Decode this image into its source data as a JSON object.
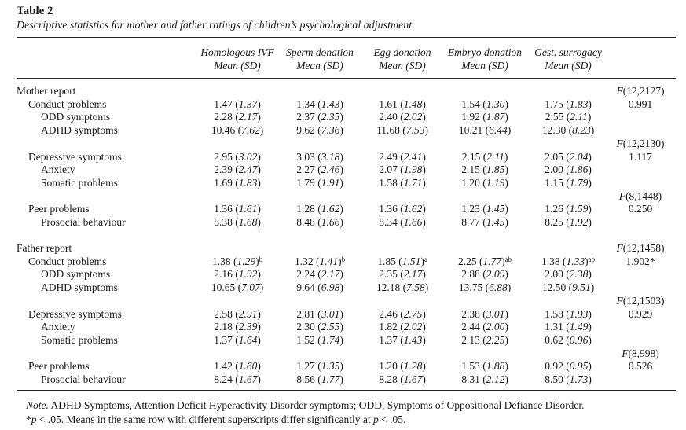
{
  "title": "Table 2",
  "caption": "Descriptive statistics for mother and father ratings of children’s psychological adjustment",
  "columns": [
    {
      "name": "Homologous IVF",
      "sub": "Mean (SD)"
    },
    {
      "name": "Sperm donation",
      "sub": "Mean (SD)"
    },
    {
      "name": "Egg donation",
      "sub": "Mean (SD)"
    },
    {
      "name": "Embryo donation",
      "sub": "Mean (SD)"
    },
    {
      "name": "Gest. surrogacy",
      "sub": "Mean (SD)"
    }
  ],
  "sections": [
    {
      "label": "Mother report",
      "groups": [
        {
          "f_label": "F(12,2127)",
          "f_value": "0.991",
          "rows": [
            {
              "label": "Conduct problems",
              "indent": 1,
              "cells": [
                [
                  "1.47",
                  "1.37",
                  ""
                ],
                [
                  "1.34",
                  "1.43",
                  ""
                ],
                [
                  "1.61",
                  "1.48",
                  ""
                ],
                [
                  "1.54",
                  "1.30",
                  ""
                ],
                [
                  "1.75",
                  "1.83",
                  ""
                ]
              ]
            },
            {
              "label": "ODD symptoms",
              "indent": 2,
              "cells": [
                [
                  "2.28",
                  "2.17",
                  ""
                ],
                [
                  "2.37",
                  "2.35",
                  ""
                ],
                [
                  "2.40",
                  "2.02",
                  ""
                ],
                [
                  "1.92",
                  "1.87",
                  ""
                ],
                [
                  "2.55",
                  "2.11",
                  ""
                ]
              ]
            },
            {
              "label": "ADHD symptoms",
              "indent": 2,
              "cells": [
                [
                  "10.46",
                  "7.62",
                  ""
                ],
                [
                  "9.62",
                  "7.36",
                  ""
                ],
                [
                  "11.68",
                  "7.53",
                  ""
                ],
                [
                  "10.21",
                  "6.44",
                  ""
                ],
                [
                  "12.30",
                  "8.23",
                  ""
                ]
              ]
            }
          ]
        },
        {
          "f_label": "F(12,2130)",
          "f_value": "1.117",
          "rows": [
            {
              "label": "Depressive symptoms",
              "indent": 1,
              "cells": [
                [
                  "2.95",
                  "3.02",
                  ""
                ],
                [
                  "3.03",
                  "3.18",
                  ""
                ],
                [
                  "2.49",
                  "2.41",
                  ""
                ],
                [
                  "2.15",
                  "2.11",
                  ""
                ],
                [
                  "2.05",
                  "2.04",
                  ""
                ]
              ]
            },
            {
              "label": "Anxiety",
              "indent": 2,
              "cells": [
                [
                  "2.39",
                  "2.47",
                  ""
                ],
                [
                  "2.27",
                  "2.46",
                  ""
                ],
                [
                  "2.07",
                  "1.98",
                  ""
                ],
                [
                  "2.15",
                  "1.85",
                  ""
                ],
                [
                  "2.00",
                  "1.86",
                  ""
                ]
              ]
            },
            {
              "label": "Somatic problems",
              "indent": 2,
              "cells": [
                [
                  "1.69",
                  "1.83",
                  ""
                ],
                [
                  "1.79",
                  "1.91",
                  ""
                ],
                [
                  "1.58",
                  "1.71",
                  ""
                ],
                [
                  "1.20",
                  "1.19",
                  ""
                ],
                [
                  "1.15",
                  "1.79",
                  ""
                ]
              ]
            }
          ]
        },
        {
          "f_label": "F(8,1448)",
          "f_value": "0.250",
          "rows": [
            {
              "label": "Peer problems",
              "indent": 1,
              "cells": [
                [
                  "1.36",
                  "1.61",
                  ""
                ],
                [
                  "1.28",
                  "1.62",
                  ""
                ],
                [
                  "1.36",
                  "1.62",
                  ""
                ],
                [
                  "1.23",
                  "1.45",
                  ""
                ],
                [
                  "1.26",
                  "1.59",
                  ""
                ]
              ]
            },
            {
              "label": "Prosocial behaviour",
              "indent": 2,
              "cells": [
                [
                  "8.38",
                  "1.68",
                  ""
                ],
                [
                  "8.48",
                  "1.66",
                  ""
                ],
                [
                  "8.34",
                  "1.66",
                  ""
                ],
                [
                  "8.77",
                  "1.45",
                  ""
                ],
                [
                  "8.25",
                  "1.92",
                  ""
                ]
              ]
            }
          ]
        }
      ]
    },
    {
      "label": "Father report",
      "groups": [
        {
          "f_label": "F(12,1458)",
          "f_value": "1.902*",
          "rows": [
            {
              "label": "Conduct problems",
              "indent": 1,
              "cells": [
                [
                  "1.38",
                  "1.29",
                  "b"
                ],
                [
                  "1.32",
                  "1.41",
                  "b"
                ],
                [
                  "1.85",
                  "1.51",
                  "a"
                ],
                [
                  "2.25",
                  "1.77",
                  "ab"
                ],
                [
                  "1.38",
                  "1.33",
                  "ab"
                ]
              ]
            },
            {
              "label": "ODD symptoms",
              "indent": 2,
              "cells": [
                [
                  "2.16",
                  "1.92",
                  ""
                ],
                [
                  "2.24",
                  "2.17",
                  ""
                ],
                [
                  "2.35",
                  "2.17",
                  ""
                ],
                [
                  "2.88",
                  "2.09",
                  ""
                ],
                [
                  "2.00",
                  "2.38",
                  ""
                ]
              ]
            },
            {
              "label": "ADHD symptoms",
              "indent": 2,
              "cells": [
                [
                  "10.65",
                  "7.07",
                  ""
                ],
                [
                  "9.64",
                  "6.98",
                  ""
                ],
                [
                  "12.18",
                  "7.58",
                  ""
                ],
                [
                  "13.75",
                  "6.88",
                  ""
                ],
                [
                  "12.50",
                  "9.51",
                  ""
                ]
              ]
            }
          ]
        },
        {
          "f_label": "F(12,1503)",
          "f_value": "0.929",
          "rows": [
            {
              "label": "Depressive symptoms",
              "indent": 1,
              "cells": [
                [
                  "2.58",
                  "2.91",
                  ""
                ],
                [
                  "2.81",
                  "3.01",
                  ""
                ],
                [
                  "2.46",
                  "2.75",
                  ""
                ],
                [
                  "2.38",
                  "3.01",
                  ""
                ],
                [
                  "1.58",
                  "1.93",
                  ""
                ]
              ]
            },
            {
              "label": "Anxiety",
              "indent": 2,
              "cells": [
                [
                  "2.18",
                  "2.39",
                  ""
                ],
                [
                  "2.30",
                  "2.55",
                  ""
                ],
                [
                  "1.82",
                  "2.02",
                  ""
                ],
                [
                  "2.44",
                  "2.00",
                  ""
                ],
                [
                  "1.31",
                  "1.49",
                  ""
                ]
              ]
            },
            {
              "label": "Somatic problems",
              "indent": 2,
              "cells": [
                [
                  "1.37",
                  "1.64",
                  ""
                ],
                [
                  "1.52",
                  "1.74",
                  ""
                ],
                [
                  "1.37",
                  "1.43",
                  ""
                ],
                [
                  "2.13",
                  "2.25",
                  ""
                ],
                [
                  "0.62",
                  "0.96",
                  ""
                ]
              ]
            }
          ]
        },
        {
          "f_label": "F(8,998)",
          "f_value": "0.526",
          "rows": [
            {
              "label": "Peer problems",
              "indent": 1,
              "cells": [
                [
                  "1.42",
                  "1.60",
                  ""
                ],
                [
                  "1.27",
                  "1.35",
                  ""
                ],
                [
                  "1.20",
                  "1.28",
                  ""
                ],
                [
                  "1.53",
                  "1.88",
                  ""
                ],
                [
                  "0.92",
                  "0.95",
                  ""
                ]
              ]
            },
            {
              "label": "Prosocial behaviour",
              "indent": 2,
              "cells": [
                [
                  "8.24",
                  "1.67",
                  ""
                ],
                [
                  "8.56",
                  "1.77",
                  ""
                ],
                [
                  "8.28",
                  "1.67",
                  ""
                ],
                [
                  "8.31",
                  "2.12",
                  ""
                ],
                [
                  "8.50",
                  "1.73",
                  ""
                ]
              ]
            }
          ]
        }
      ]
    }
  ],
  "note": {
    "label": "Note.",
    "text": " ADHD Symptoms, Attention Deficit Hyperactivity Disorder symptoms; ODD, Symptoms of Oppositional Defiance Disorder.",
    "line2_a": "*",
    "line2_b": "p",
    "line2_c": " < .05. Means in the same row with different superscripts differ significantly at ",
    "line2_d": "p",
    "line2_e": " < .05."
  }
}
